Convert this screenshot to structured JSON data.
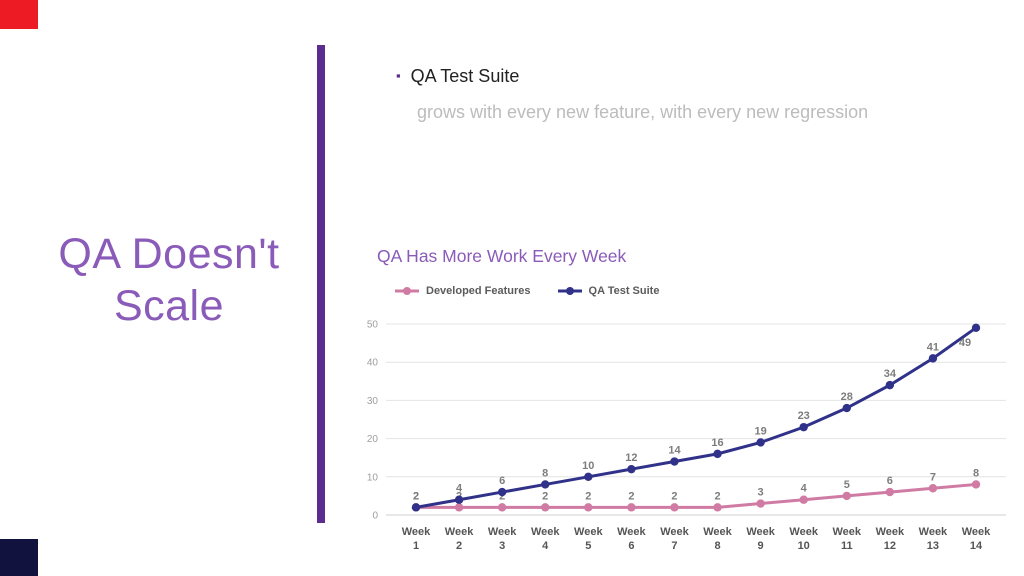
{
  "slide": {
    "title_line1": "QA Doesn't",
    "title_line2": "Scale",
    "bullet": {
      "marker": "▪",
      "heading": "QA Test Suite",
      "subtext": "grows with every new feature, with every new regression"
    }
  },
  "chart_data": {
    "type": "line",
    "title": "QA Has More Work Every Week",
    "categories": [
      "Week 1",
      "Week 2",
      "Week 3",
      "Week 4",
      "Week 5",
      "Week 6",
      "Week 7",
      "Week 8",
      "Week 9",
      "Week 10",
      "Week 11",
      "Week 12",
      "Week 13",
      "Week 14"
    ],
    "series": [
      {
        "name": "Developed Features",
        "color": "#cf7ba3",
        "values": [
          2,
          2,
          2,
          2,
          2,
          2,
          2,
          2,
          3,
          4,
          5,
          6,
          7,
          8
        ]
      },
      {
        "name": "QA Test Suite",
        "color": "#303189",
        "values": [
          2,
          4,
          6,
          8,
          10,
          12,
          14,
          16,
          19,
          23,
          28,
          34,
          41,
          49
        ]
      }
    ],
    "xlabel": "",
    "ylabel": "",
    "ylim": [
      0,
      50
    ],
    "yticks": [
      0,
      10,
      20,
      30,
      40,
      50
    ],
    "grid": true,
    "legend_position": "top"
  },
  "colors": {
    "accent": "#8a5bb8",
    "divider": "#5c2d91",
    "corner-red": "#ed1c24",
    "corner-dark": "#12123f",
    "grid-line": "#e4e4e4",
    "axis-label": "#555555",
    "tick-label": "#9e9e9e",
    "data-label": "#7d7d7d"
  }
}
